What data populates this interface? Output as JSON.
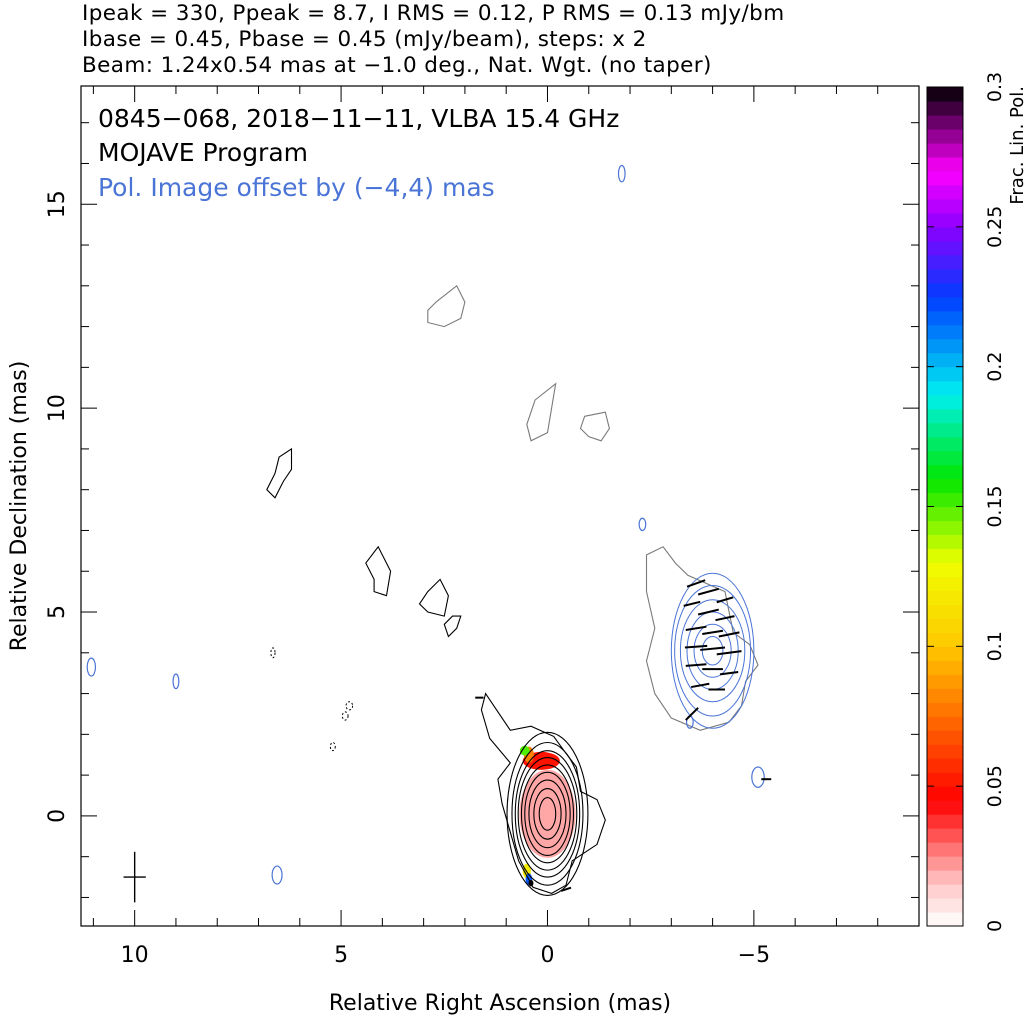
{
  "header": {
    "line1": "Ipeak = 330, Ppeak = 8.7, I RMS = 0.12, P RMS = 0.13 mJy/bm",
    "line2": "Ibase = 0.45, Pbase = 0.45 (mJy/beam), steps: x 2",
    "line3": "Beam: 1.24x0.54 mas at −1.0 deg., Nat. Wgt. (no taper)"
  },
  "annotations": {
    "source": "0845−068, 2018−11−11, VLBA 15.4 GHz",
    "program": "MOJAVE Program",
    "pol_offset": "Pol. Image offset by (−4,4) mas"
  },
  "colors": {
    "total_intensity": "#000000",
    "low_contour": "#7a7a7a",
    "polarization": "#4a74d6"
  },
  "chart_data": {
    "type": "contour",
    "xlabel": "Relative Right Ascension (mas)",
    "ylabel": "Relative Declination (mas)",
    "xlim": [
      11.3,
      -9.0
    ],
    "ylim": [
      -2.7,
      17.9
    ],
    "x_ticks": [
      {
        "value": 10,
        "label": "10"
      },
      {
        "value": 5,
        "label": "5"
      },
      {
        "value": 0,
        "label": "0"
      },
      {
        "value": -5,
        "label": "−5"
      }
    ],
    "y_ticks": [
      {
        "value": 0,
        "label": "0"
      },
      {
        "value": 5,
        "label": "5"
      },
      {
        "value": 10,
        "label": "10"
      },
      {
        "value": 15,
        "label": "15"
      }
    ],
    "beam": {
      "major_mas": 1.24,
      "minor_mas": 0.54,
      "pa_deg": -1.0,
      "center": [
        10.0,
        -1.5
      ]
    },
    "colorbar": {
      "label": "Frac. Lin. Pol.",
      "range": [
        0,
        0.3
      ],
      "ticks": [
        {
          "value": 0,
          "label": "0"
        },
        {
          "value": 0.05,
          "label": "0.05"
        },
        {
          "value": 0.1,
          "label": "0.1"
        },
        {
          "value": 0.15,
          "label": "0.15"
        },
        {
          "value": 0.2,
          "label": "0.2"
        },
        {
          "value": 0.25,
          "label": "0.25"
        },
        {
          "value": 0.3,
          "label": "0.3"
        }
      ]
    },
    "core": {
      "center": [
        0.0,
        0.05
      ],
      "contours": [
        {
          "rx": 0.2,
          "ry": 0.4
        },
        {
          "rx": 0.33,
          "ry": 0.62
        },
        {
          "rx": 0.45,
          "ry": 0.83
        },
        {
          "rx": 0.55,
          "ry": 1.02
        },
        {
          "rx": 0.63,
          "ry": 1.2
        },
        {
          "rx": 0.71,
          "ry": 1.38
        },
        {
          "rx": 0.78,
          "ry": 1.55
        },
        {
          "rx": 0.86,
          "ry": 1.75
        },
        {
          "rx": 0.98,
          "ry": 2.0
        }
      ]
    },
    "core_outer_contour": [
      [
        0.9,
        2.1
      ],
      [
        1.5,
        3.0
      ],
      [
        1.6,
        2.6
      ],
      [
        1.4,
        1.9
      ],
      [
        0.9,
        1.3
      ],
      [
        1.2,
        0.9
      ],
      [
        1.1,
        0.3
      ],
      [
        0.9,
        -0.4
      ],
      [
        0.7,
        -1.1
      ],
      [
        0.35,
        -1.75
      ],
      [
        -0.1,
        -1.9
      ],
      [
        -0.45,
        -1.7
      ],
      [
        -0.6,
        -1.1
      ],
      [
        -1.2,
        -0.7
      ],
      [
        -1.4,
        -0.1
      ],
      [
        -1.2,
        0.4
      ],
      [
        -0.8,
        0.6
      ],
      [
        -0.7,
        1.2
      ],
      [
        -0.4,
        1.6
      ],
      [
        -0.15,
        1.95
      ],
      [
        0.4,
        2.2
      ]
    ],
    "polarization_map": [
      {
        "x": 0.0,
        "y": 0.05,
        "rx": 0.68,
        "ry": 1.08,
        "frac": 0.02
      },
      {
        "x": 0.15,
        "y": 1.35,
        "rx": 0.45,
        "ry": 0.22,
        "frac": 0.05
      },
      {
        "x": 0.45,
        "y": 1.5,
        "rx": 0.12,
        "ry": 0.2,
        "frac": 0.08
      },
      {
        "x": 0.55,
        "y": 1.6,
        "rx": 0.12,
        "ry": 0.12,
        "frac": 0.15
      },
      {
        "x": 0.5,
        "y": -1.35,
        "rx": 0.1,
        "ry": 0.18,
        "frac": 0.12
      },
      {
        "x": 0.45,
        "y": -1.55,
        "rx": 0.08,
        "ry": 0.14,
        "frac": 0.22
      },
      {
        "x": 0.4,
        "y": -1.65,
        "rx": 0.06,
        "ry": 0.08,
        "frac": 0.3
      }
    ],
    "faint_islands": [
      {
        "pts": [
          [
            2.7,
            12.6
          ],
          [
            2.2,
            13.0
          ],
          [
            2.0,
            12.6
          ],
          [
            2.1,
            12.2
          ],
          [
            2.5,
            12.0
          ],
          [
            2.9,
            12.1
          ],
          [
            2.9,
            12.4
          ]
        ]
      },
      {
        "pts": [
          [
            0.3,
            10.2
          ],
          [
            -0.2,
            10.6
          ],
          [
            -0.1,
            10.0
          ],
          [
            0.0,
            9.4
          ],
          [
            0.4,
            9.2
          ],
          [
            0.5,
            9.6
          ]
        ]
      },
      {
        "pts": [
          [
            -0.9,
            9.8
          ],
          [
            -1.4,
            9.9
          ],
          [
            -1.5,
            9.5
          ],
          [
            -1.3,
            9.2
          ],
          [
            -1.0,
            9.3
          ],
          [
            -0.8,
            9.5
          ]
        ]
      },
      {
        "pts": [
          [
            -2.4,
            3.8
          ],
          [
            -2.6,
            4.6
          ],
          [
            -2.4,
            5.5
          ],
          [
            -2.4,
            6.4
          ],
          [
            -2.8,
            6.6
          ],
          [
            -3.1,
            6.2
          ],
          [
            -3.4,
            5.9
          ],
          [
            -4.3,
            5.5
          ],
          [
            -4.5,
            4.5
          ],
          [
            -4.9,
            4.2
          ],
          [
            -5.1,
            3.7
          ],
          [
            -4.8,
            3.3
          ],
          [
            -4.7,
            2.7
          ],
          [
            -4.4,
            2.3
          ],
          [
            -3.7,
            2.1
          ],
          [
            -3.0,
            2.4
          ],
          [
            -2.6,
            3.0
          ]
        ]
      }
    ],
    "black_islands": [
      {
        "pts": [
          [
            6.6,
            8.4
          ],
          [
            6.8,
            8.0
          ],
          [
            6.6,
            7.8
          ],
          [
            6.4,
            8.2
          ],
          [
            6.2,
            8.5
          ],
          [
            6.2,
            9.0
          ],
          [
            6.5,
            8.8
          ]
        ]
      },
      {
        "pts": [
          [
            4.2,
            5.8
          ],
          [
            4.4,
            6.2
          ],
          [
            4.1,
            6.6
          ],
          [
            3.8,
            6.0
          ],
          [
            3.9,
            5.4
          ],
          [
            4.2,
            5.5
          ]
        ]
      },
      {
        "pts": [
          [
            2.9,
            5.5
          ],
          [
            3.1,
            5.2
          ],
          [
            2.9,
            5.0
          ],
          [
            2.5,
            4.9
          ],
          [
            2.4,
            5.4
          ],
          [
            2.6,
            5.8
          ]
        ]
      },
      {
        "pts": [
          [
            2.2,
            4.6
          ],
          [
            2.1,
            4.9
          ],
          [
            2.3,
            4.9
          ],
          [
            2.5,
            4.7
          ],
          [
            2.4,
            4.4
          ]
        ]
      }
    ],
    "pol_component": {
      "center": [
        -4.0,
        4.05
      ],
      "contours": [
        {
          "rx": 0.25,
          "ry": 0.35
        },
        {
          "rx": 0.45,
          "ry": 0.65
        },
        {
          "rx": 0.62,
          "ry": 0.95
        },
        {
          "rx": 0.78,
          "ry": 1.25
        },
        {
          "rx": 0.92,
          "ry": 1.6
        },
        {
          "rx": 1.0,
          "ry": 1.9
        }
      ]
    },
    "pol_vectors": [
      {
        "x": -3.6,
        "y": 5.7,
        "dx": -0.22,
        "dy": 0.08
      },
      {
        "x": -3.9,
        "y": 5.5,
        "dx": -0.25,
        "dy": 0.07
      },
      {
        "x": -4.3,
        "y": 5.3,
        "dx": -0.2,
        "dy": 0.06
      },
      {
        "x": -3.5,
        "y": 5.2,
        "dx": -0.2,
        "dy": 0.05
      },
      {
        "x": -3.9,
        "y": 5.0,
        "dx": -0.25,
        "dy": 0.06
      },
      {
        "x": -4.3,
        "y": 4.85,
        "dx": -0.23,
        "dy": 0.05
      },
      {
        "x": -3.6,
        "y": 4.6,
        "dx": -0.25,
        "dy": 0.04
      },
      {
        "x": -4.0,
        "y": 4.5,
        "dx": -0.25,
        "dy": 0.04
      },
      {
        "x": -4.4,
        "y": 4.45,
        "dx": -0.25,
        "dy": 0.05
      },
      {
        "x": -3.6,
        "y": 4.15,
        "dx": -0.27,
        "dy": 0.02
      },
      {
        "x": -4.0,
        "y": 4.1,
        "dx": -0.3,
        "dy": 0.03
      },
      {
        "x": -4.4,
        "y": 4.0,
        "dx": -0.3,
        "dy": 0.04
      },
      {
        "x": -3.6,
        "y": 3.7,
        "dx": -0.25,
        "dy": 0.02
      },
      {
        "x": -4.0,
        "y": 3.6,
        "dx": -0.25,
        "dy": 0.0
      },
      {
        "x": -4.4,
        "y": 3.5,
        "dx": -0.22,
        "dy": 0.03
      },
      {
        "x": -3.7,
        "y": 3.2,
        "dx": -0.22,
        "dy": 0.04
      },
      {
        "x": -4.1,
        "y": 3.1,
        "dx": -0.2,
        "dy": 0.0
      },
      {
        "x": -3.5,
        "y": 2.5,
        "dx": -0.15,
        "dy": 0.15
      },
      {
        "x": -5.3,
        "y": 0.9,
        "dx": -0.12,
        "dy": 0.0
      },
      {
        "x": 1.65,
        "y": 2.9,
        "dx": -0.1,
        "dy": 0.0
      },
      {
        "x": -0.45,
        "y": -1.8,
        "dx": -0.12,
        "dy": 0.04
      }
    ],
    "pol_blobs": [
      {
        "x": -1.8,
        "y": 15.75,
        "rx": 0.08,
        "ry": 0.2
      },
      {
        "x": -2.3,
        "y": 7.15,
        "rx": 0.08,
        "ry": 0.15
      },
      {
        "x": -5.1,
        "y": 0.95,
        "rx": 0.15,
        "ry": 0.25
      },
      {
        "x": 6.55,
        "y": -1.45,
        "rx": 0.12,
        "ry": 0.22
      },
      {
        "x": 11.05,
        "y": 3.65,
        "rx": 0.1,
        "ry": 0.22
      },
      {
        "x": 9.0,
        "y": 3.3,
        "rx": 0.07,
        "ry": 0.18
      },
      {
        "x": -3.45,
        "y": 2.3,
        "rx": 0.08,
        "ry": 0.15
      }
    ],
    "neg_contours": [
      {
        "x": 4.8,
        "y": 2.7,
        "rx": 0.08,
        "ry": 0.1
      },
      {
        "x": 4.9,
        "y": 2.45,
        "rx": 0.07,
        "ry": 0.1
      },
      {
        "x": 5.2,
        "y": 1.7,
        "rx": 0.06,
        "ry": 0.1
      },
      {
        "x": 6.65,
        "y": 4.0,
        "rx": 0.05,
        "ry": 0.12
      }
    ]
  }
}
